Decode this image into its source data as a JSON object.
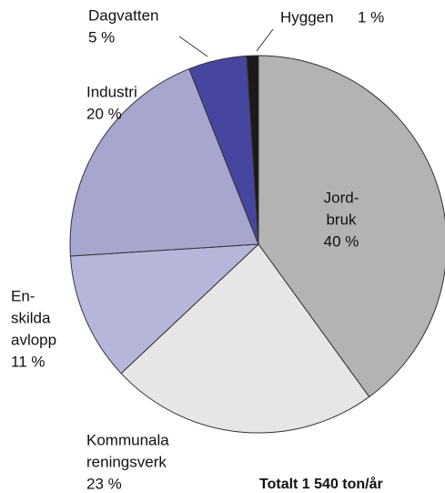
{
  "chart_data": {
    "type": "pie",
    "categories": [
      [
        "Jord-",
        "bruk"
      ],
      [
        "Kommunala",
        "reningsverk"
      ],
      [
        "En-",
        "skilda",
        "avlopp"
      ],
      [
        "Industri"
      ],
      [
        "Dagvatten"
      ],
      [
        "Hyggen"
      ]
    ],
    "values": [
      40,
      23,
      11,
      20,
      5,
      1
    ],
    "value_labels": [
      "40 %",
      "23 %",
      "11 %",
      "20 %",
      "5 %",
      "1 %"
    ],
    "colors": [
      "#b3b3b3",
      "#e6e6e6",
      "#b6b6da",
      "#a6a6cf",
      "#4646a0",
      "#1a1a1a"
    ],
    "note": "Totalt 1 540 ton/år"
  }
}
